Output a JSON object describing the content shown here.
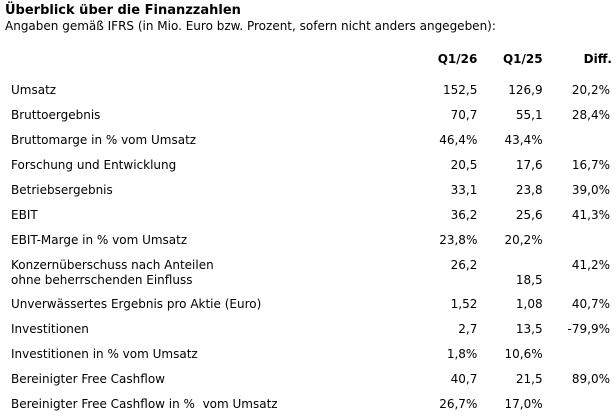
{
  "title": "Überblick über die Finanzzahlen",
  "subtitle": "Angaben gemäß IFRS (in Mio. Euro bzw. Prozent, sofern nicht anders angegeben):",
  "columns": [
    "",
    "Q1/26",
    "Q1/25",
    "Diff."
  ],
  "rows": [
    {
      "label": "Umsatz",
      "q1_26": "152,5",
      "q1_25": "126,9",
      "diff": "20,2%"
    },
    {
      "label": "Bruttoergebnis",
      "q1_26": "70,7",
      "q1_25": "55,1",
      "diff": "28,4%"
    },
    {
      "label": "Bruttomarge in % vom Umsatz",
      "q1_26": "46,4%",
      "q1_25": "43,4%",
      "diff": ""
    },
    {
      "label": "Forschung und Entwicklung",
      "q1_26": "20,5",
      "q1_25": "17,6",
      "diff": "16,7%"
    },
    {
      "label": "Betriebsergebnis",
      "q1_26": "33,1",
      "q1_25": "23,8",
      "diff": "39,0%"
    },
    {
      "label": "EBIT",
      "q1_26": "36,2",
      "q1_25": "25,6",
      "diff": "41,3%"
    },
    {
      "label": "EBIT-Marge in % vom Umsatz",
      "q1_26": "23,8%",
      "q1_25": "20,2%",
      "diff": ""
    },
    {
      "label_line1": "Konzernüberschuss nach Anteilen",
      "label_line2": "ohne beherrschenden Einfluss",
      "q1_26": "26,2",
      "q1_25": "18,5",
      "diff": "41,2%"
    },
    {
      "label": "Unverwässertes Ergebnis pro Aktie (Euro)",
      "q1_26": "1,52",
      "q1_25": "1,08",
      "diff": "40,7%"
    },
    {
      "label": "Investitionen",
      "q1_26": "2,7",
      "q1_25": "13,5",
      "diff": "-79,9%"
    },
    {
      "label": "Investitionen in % vom Umsatz",
      "q1_26": "1,8%",
      "q1_25": "10,6%",
      "diff": ""
    },
    {
      "label": "Bereinigter Free Cashflow",
      "q1_26": "40,7",
      "q1_25": "21,5",
      "diff": "89,0%"
    },
    {
      "label": "Bereinigter Free Cashflow in %  vom Umsatz",
      "q1_26": "26,7%",
      "q1_25": "17,0%",
      "diff": ""
    }
  ]
}
